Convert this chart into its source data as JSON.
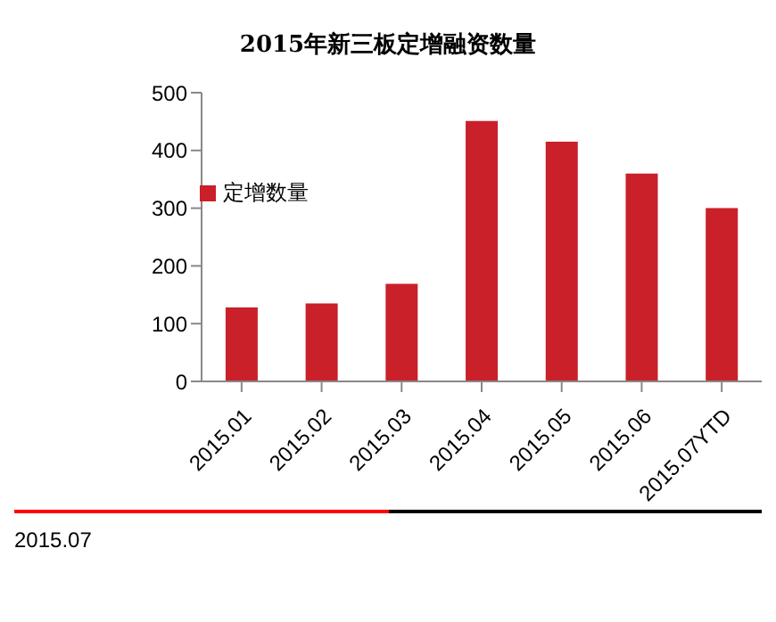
{
  "chart_data": {
    "type": "bar",
    "title": "2015年新三板定增融资数量",
    "categories": [
      "2015.01",
      "2015.02",
      "2015.03",
      "2015.04",
      "2015.05",
      "2015.06",
      "2015.07YTD"
    ],
    "series": [
      {
        "name": "定增数量",
        "color": "#c9202a",
        "values": [
          128,
          135,
          169,
          451,
          415,
          360,
          300
        ]
      }
    ],
    "ylim": [
      0,
      500
    ],
    "yticks": [
      0,
      100,
      200,
      300,
      400,
      500
    ],
    "grid": false,
    "legend": "top left",
    "annotations": [
      "2015.07"
    ]
  }
}
